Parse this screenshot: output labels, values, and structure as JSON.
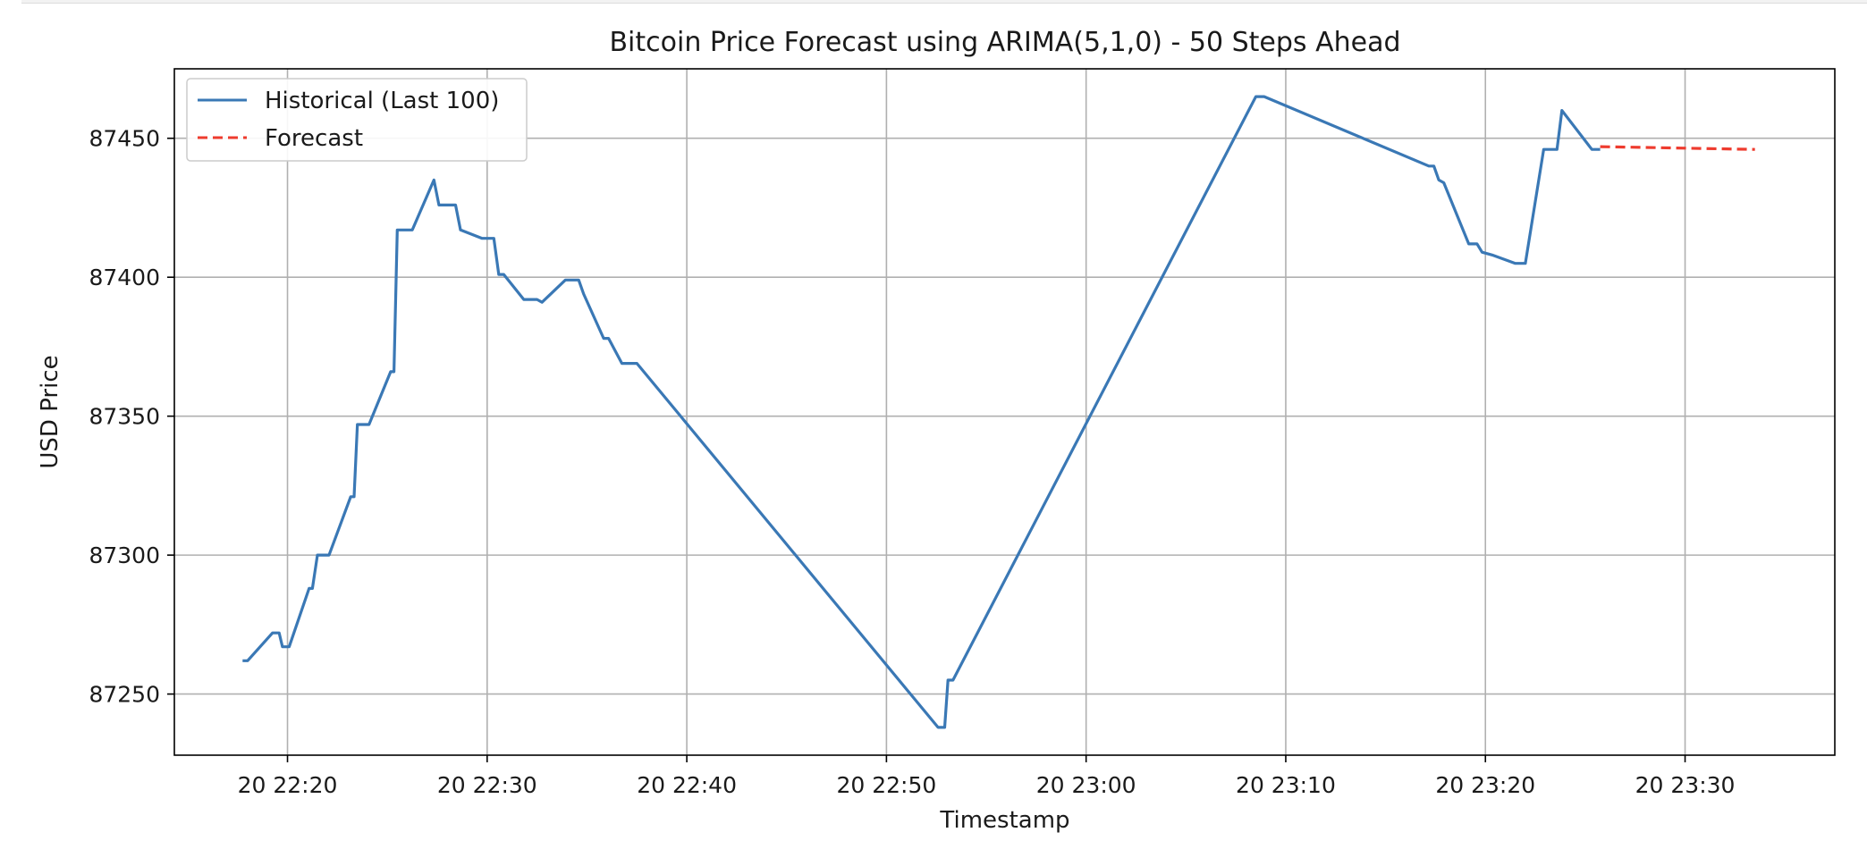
{
  "chart_data": {
    "type": "line",
    "title": "Bitcoin Price Forecast using ARIMA(5,1,0) - 50 Steps Ahead",
    "xlabel": "Timestamp",
    "ylabel": "USD Price",
    "grid": true,
    "legend_position": "top-left",
    "x_ticks": [
      "20 22:20",
      "20 22:30",
      "20 22:40",
      "20 22:50",
      "20 23:00",
      "20 23:10",
      "20 23:20",
      "20 23:30"
    ],
    "x_tick_values": [
      "22:20",
      "22:30",
      "22:40",
      "22:50",
      "23:00",
      "23:10",
      "23:20",
      "23:30"
    ],
    "y_ticks": [
      87250,
      87300,
      87350,
      87400,
      87450
    ],
    "xlim": [
      "22:14:20",
      "23:37:30"
    ],
    "ylim": [
      87228,
      87475
    ],
    "colors": {
      "historical": "#3a78b5",
      "forecast": "#ee3b2e"
    },
    "series": [
      {
        "name": "Historical (Last 100)",
        "style": "solid",
        "color": "#3a78b5",
        "points": [
          [
            "22:17:45",
            87262
          ],
          [
            "22:18:00",
            87262
          ],
          [
            "22:19:15",
            87272
          ],
          [
            "22:19:35",
            87272
          ],
          [
            "22:19:45",
            87267
          ],
          [
            "22:20:05",
            87267
          ],
          [
            "22:21:05",
            87288
          ],
          [
            "22:21:15",
            87288
          ],
          [
            "22:21:30",
            87300
          ],
          [
            "22:22:05",
            87300
          ],
          [
            "22:23:10",
            87321
          ],
          [
            "22:23:20",
            87321
          ],
          [
            "22:23:30",
            87347
          ],
          [
            "22:24:05",
            87347
          ],
          [
            "22:25:10",
            87366
          ],
          [
            "22:25:20",
            87366
          ],
          [
            "22:25:30",
            87417
          ],
          [
            "22:26:15",
            87417
          ],
          [
            "22:27:20",
            87435
          ],
          [
            "22:27:35",
            87426
          ],
          [
            "22:28:25",
            87426
          ],
          [
            "22:28:40",
            87417
          ],
          [
            "22:29:45",
            87414
          ],
          [
            "22:30:20",
            87414
          ],
          [
            "22:30:35",
            87401
          ],
          [
            "22:30:50",
            87401
          ],
          [
            "22:31:50",
            87392
          ],
          [
            "22:32:30",
            87392
          ],
          [
            "22:32:45",
            87391
          ],
          [
            "22:33:55",
            87399
          ],
          [
            "22:34:35",
            87399
          ],
          [
            "22:34:50",
            87394
          ],
          [
            "22:35:50",
            87378
          ],
          [
            "22:36:05",
            87378
          ],
          [
            "22:36:45",
            87369
          ],
          [
            "22:37:30",
            87369
          ],
          [
            "22:52:35",
            87238
          ],
          [
            "22:52:55",
            87238
          ],
          [
            "22:53:05",
            87255
          ],
          [
            "22:53:20",
            87255
          ],
          [
            "23:08:30",
            87465
          ],
          [
            "23:08:55",
            87465
          ],
          [
            "23:17:10",
            87440
          ],
          [
            "23:17:25",
            87440
          ],
          [
            "23:17:40",
            87435
          ],
          [
            "23:17:55",
            87434
          ],
          [
            "23:19:10",
            87412
          ],
          [
            "23:19:35",
            87412
          ],
          [
            "23:19:50",
            87409
          ],
          [
            "23:20:20",
            87408
          ],
          [
            "23:21:30",
            87405
          ],
          [
            "23:22:00",
            87405
          ],
          [
            "23:22:55",
            87446
          ],
          [
            "23:23:35",
            87446
          ],
          [
            "23:23:50",
            87460
          ],
          [
            "23:25:20",
            87446
          ],
          [
            "23:25:45",
            87446
          ]
        ]
      },
      {
        "name": "Forecast",
        "style": "dashed",
        "color": "#ee3b2e",
        "points": [
          [
            "23:25:45",
            87447
          ],
          [
            "23:33:30",
            87446
          ]
        ]
      }
    ]
  }
}
